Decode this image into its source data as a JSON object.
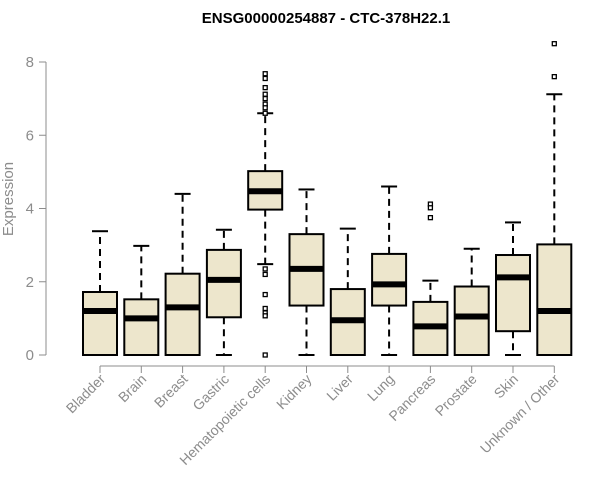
{
  "chart_data": {
    "type": "boxplot",
    "title": "ENSG00000254887 - CTC-378H22.1",
    "xlabel": "",
    "ylabel": "Expression",
    "ylim": [
      0,
      8.5
    ],
    "yticks": [
      0,
      2,
      4,
      6,
      8
    ],
    "grid": false,
    "legend": "none",
    "box_fill": "#ede6cc",
    "axis_color": "#8c8c8c",
    "categories": [
      "Bladder",
      "Brain",
      "Breast",
      "Gastric",
      "Hematopoietic cells",
      "Kidney",
      "Liver",
      "Lung",
      "Pancreas",
      "Prostate",
      "Skin",
      "Unknown / Other"
    ],
    "boxes": [
      {
        "min": 0,
        "q1": 0,
        "median": 1.2,
        "q3": 1.72,
        "max": 3.38,
        "outliers": []
      },
      {
        "min": 0,
        "q1": 0,
        "median": 1.0,
        "q3": 1.52,
        "max": 2.98,
        "outliers": []
      },
      {
        "min": 0,
        "q1": 0,
        "median": 1.3,
        "q3": 2.22,
        "max": 4.4,
        "outliers": []
      },
      {
        "min": 0,
        "q1": 1.03,
        "median": 2.05,
        "q3": 2.87,
        "max": 3.42,
        "outliers": []
      },
      {
        "min": 2.48,
        "q1": 3.97,
        "median": 4.47,
        "q3": 5.02,
        "max": 6.6,
        "outliers": [
          7.68,
          7.55,
          7.3,
          7.12,
          7.0,
          6.85,
          6.75,
          6.6,
          2.35,
          2.2,
          1.65,
          1.27,
          1.15,
          1.07,
          0.0
        ]
      },
      {
        "min": 0,
        "q1": 1.35,
        "median": 2.35,
        "q3": 3.3,
        "max": 4.52,
        "outliers": []
      },
      {
        "min": 0,
        "q1": 0,
        "median": 0.95,
        "q3": 1.8,
        "max": 3.45,
        "outliers": []
      },
      {
        "min": 0,
        "q1": 1.35,
        "median": 1.93,
        "q3": 2.76,
        "max": 4.6,
        "outliers": []
      },
      {
        "min": 0,
        "q1": 0,
        "median": 0.78,
        "q3": 1.45,
        "max": 2.03,
        "outliers": [
          4.12,
          4.02,
          3.75
        ]
      },
      {
        "min": 0,
        "q1": 0,
        "median": 1.05,
        "q3": 1.87,
        "max": 2.9,
        "outliers": []
      },
      {
        "min": 0,
        "q1": 0.65,
        "median": 2.12,
        "q3": 2.73,
        "max": 3.62,
        "outliers": []
      },
      {
        "min": 0,
        "q1": 0,
        "median": 1.2,
        "q3": 3.02,
        "max": 7.12,
        "outliers": [
          8.5,
          7.6
        ]
      }
    ]
  }
}
